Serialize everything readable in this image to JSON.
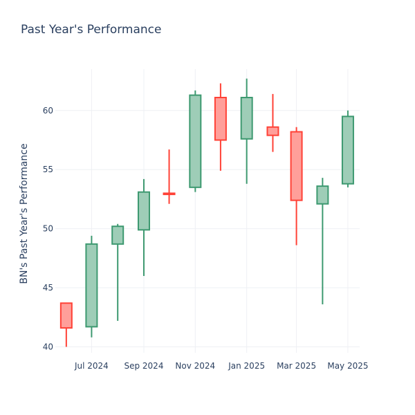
{
  "chart_data": {
    "type": "candlestick",
    "title": "Past Year's Performance",
    "ylabel": "BN's Past Year's Performance",
    "xlabel": "",
    "ylim": [
      39.5,
      63.5
    ],
    "y_ticks": [
      40,
      45,
      50,
      55,
      60
    ],
    "x_ticks": [
      {
        "date": "2024-07-01",
        "label": "Jul 2024"
      },
      {
        "date": "2024-09-01",
        "label": "Sep 2024"
      },
      {
        "date": "2024-11-01",
        "label": "Nov 2024"
      },
      {
        "date": "2025-01-01",
        "label": "Jan 2025"
      },
      {
        "date": "2025-03-01",
        "label": "Mar 2025"
      },
      {
        "date": "2025-05-01",
        "label": "May 2025"
      }
    ],
    "x_range": [
      "2024-05-19",
      "2025-05-15"
    ],
    "grid": true,
    "colors": {
      "increasing": "#3d9970",
      "increasing_fill": "#9ecdb7",
      "decreasing": "#ff4136",
      "decreasing_fill": "#ff9f9a"
    },
    "candles": [
      {
        "date": "2024-06-01",
        "open": 43.7,
        "high": 43.7,
        "low": 40.0,
        "close": 41.6
      },
      {
        "date": "2024-07-01",
        "open": 41.7,
        "high": 49.4,
        "low": 40.8,
        "close": 48.7
      },
      {
        "date": "2024-08-01",
        "open": 48.7,
        "high": 50.4,
        "low": 42.2,
        "close": 50.2
      },
      {
        "date": "2024-09-01",
        "open": 49.9,
        "high": 54.2,
        "low": 46.0,
        "close": 53.1
      },
      {
        "date": "2024-10-01",
        "open": 53.0,
        "high": 56.7,
        "low": 52.1,
        "close": 52.9
      },
      {
        "date": "2024-11-01",
        "open": 53.5,
        "high": 61.7,
        "low": 53.1,
        "close": 61.3
      },
      {
        "date": "2024-12-01",
        "open": 61.1,
        "high": 62.3,
        "low": 54.9,
        "close": 57.5
      },
      {
        "date": "2025-01-01",
        "open": 57.6,
        "high": 62.7,
        "low": 53.8,
        "close": 61.1
      },
      {
        "date": "2025-02-01",
        "open": 58.6,
        "high": 61.4,
        "low": 56.5,
        "close": 57.9
      },
      {
        "date": "2025-03-01",
        "open": 58.2,
        "high": 58.6,
        "low": 48.6,
        "close": 52.4
      },
      {
        "date": "2025-04-01",
        "open": 52.1,
        "high": 54.3,
        "low": 43.6,
        "close": 53.6
      },
      {
        "date": "2025-05-01",
        "open": 53.8,
        "high": 60.0,
        "low": 53.5,
        "close": 59.5
      }
    ]
  }
}
